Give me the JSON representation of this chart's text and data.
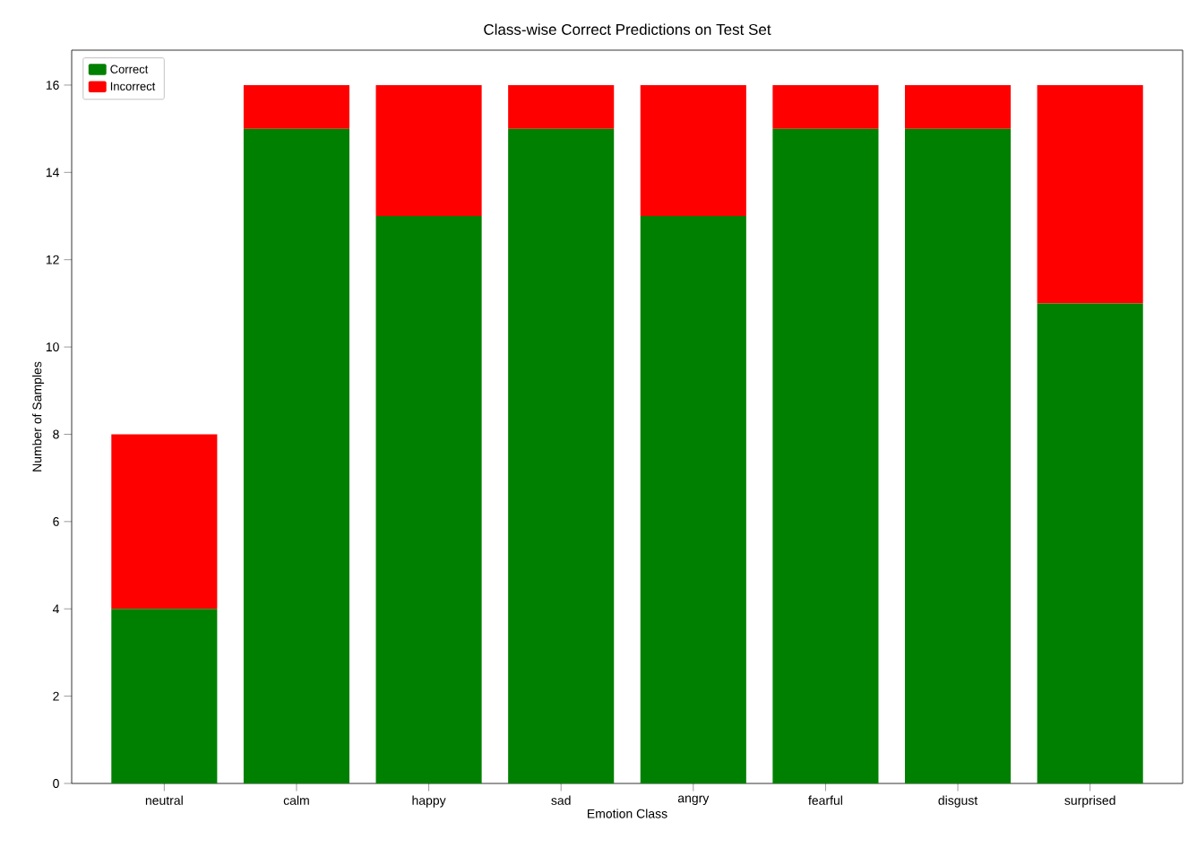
{
  "chart_data": {
    "type": "bar",
    "title": "Class-wise Correct Predictions on Test Set",
    "xlabel": "Emotion Class",
    "ylabel": "Number of Samples",
    "categories": [
      "neutral",
      "calm",
      "happy",
      "sad",
      "angry",
      "fearful",
      "disgust",
      "surprised"
    ],
    "stacked": true,
    "series": [
      {
        "name": "Correct",
        "color": "#008000",
        "values": [
          4,
          15,
          13,
          15,
          13,
          15,
          15,
          11
        ]
      },
      {
        "name": "Incorrect",
        "color": "#ff0000",
        "values": [
          4,
          1,
          3,
          1,
          3,
          1,
          1,
          5
        ]
      }
    ],
    "ylim": [
      0,
      16.8
    ],
    "yticks": [
      0,
      2,
      4,
      6,
      8,
      10,
      12,
      14,
      16
    ],
    "grid": false,
    "legend": "top left"
  }
}
